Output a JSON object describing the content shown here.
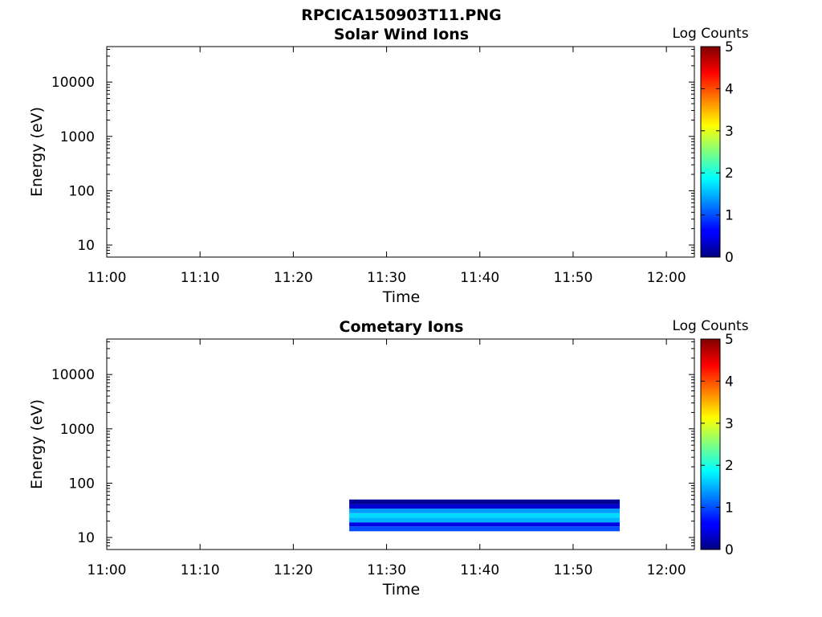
{
  "figure": {
    "title": "RPCICA150903T11.PNG"
  },
  "chart_data": [
    {
      "type": "heatmap",
      "title": "Solar Wind Ions",
      "xlabel": "Time",
      "ylabel": "Energy (eV)",
      "xticks": [
        "11:00",
        "11:10",
        "11:20",
        "11:30",
        "11:40",
        "11:50",
        "12:00"
      ],
      "yticks": [
        "10",
        "100",
        "1000",
        "10000"
      ],
      "yscale": "log",
      "xlim": [
        "11:00",
        "12:03"
      ],
      "ylim": [
        6,
        45000
      ],
      "colorbar": {
        "label": "Log Counts",
        "range": [
          0,
          5
        ],
        "ticks": [
          "0",
          "1",
          "2",
          "3",
          "4",
          "5"
        ],
        "colormap": "jet"
      },
      "data": []
    },
    {
      "type": "heatmap",
      "title": "Cometary Ions",
      "xlabel": "Time",
      "ylabel": "Energy (eV)",
      "xticks": [
        "11:00",
        "11:10",
        "11:20",
        "11:30",
        "11:40",
        "11:50",
        "12:00"
      ],
      "yticks": [
        "10",
        "100",
        "1000",
        "10000"
      ],
      "yscale": "log",
      "xlim": [
        "11:00",
        "12:03"
      ],
      "ylim": [
        6,
        45000
      ],
      "colorbar": {
        "label": "Log Counts",
        "range": [
          0,
          5
        ],
        "ticks": [
          "0",
          "1",
          "2",
          "3",
          "4",
          "5"
        ],
        "colormap": "jet"
      },
      "data": [
        {
          "t_start": "11:26",
          "t_end": "11:55",
          "energy_min": 13,
          "energy_max": 16,
          "log_counts": 1.0
        },
        {
          "t_start": "11:26",
          "t_end": "11:55",
          "energy_min": 16,
          "energy_max": 19,
          "log_counts": 0.5
        },
        {
          "t_start": "11:26",
          "t_end": "11:55",
          "energy_min": 19,
          "energy_max": 23,
          "log_counts": 1.5
        },
        {
          "t_start": "11:26",
          "t_end": "11:55",
          "energy_min": 23,
          "energy_max": 28,
          "log_counts": 1.7
        },
        {
          "t_start": "11:26",
          "t_end": "11:55",
          "energy_min": 28,
          "energy_max": 34,
          "log_counts": 1.4
        },
        {
          "t_start": "11:26",
          "t_end": "11:55",
          "energy_min": 34,
          "energy_max": 41,
          "log_counts": 0.4
        },
        {
          "t_start": "11:26",
          "t_end": "11:55",
          "energy_min": 41,
          "energy_max": 50,
          "log_counts": 0.1
        }
      ]
    }
  ]
}
